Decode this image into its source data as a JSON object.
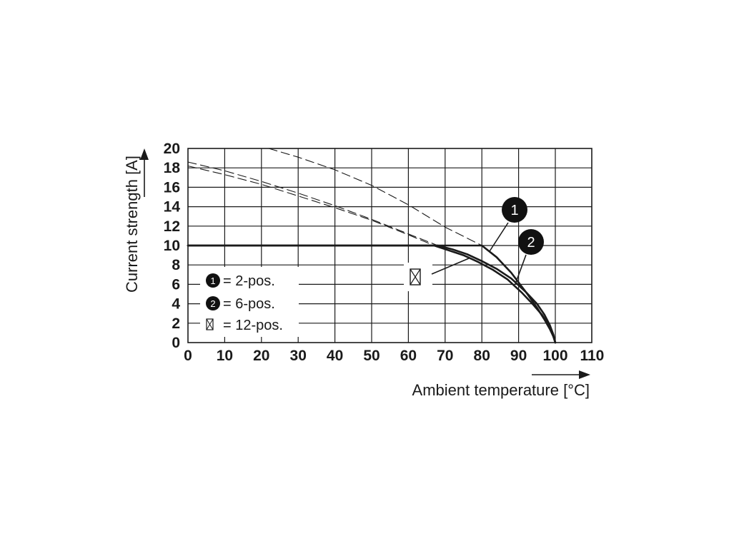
{
  "chart_data": {
    "type": "line",
    "xlabel": "Ambient temperature [°C]",
    "ylabel": "Current strength [A]",
    "xlim": [
      0,
      110
    ],
    "ylim": [
      0,
      20
    ],
    "x_ticks": [
      "0",
      "10",
      "20",
      "30",
      "40",
      "50",
      "60",
      "70",
      "80",
      "90",
      "100",
      "110"
    ],
    "y_ticks": [
      "0",
      "2",
      "4",
      "6",
      "8",
      "10",
      "12",
      "14",
      "16",
      "18",
      "20"
    ],
    "grid": true,
    "legend": {
      "placement": "lower-left",
      "entries": [
        {
          "marker": "1",
          "label": "= 2-pos."
        },
        {
          "marker": "2",
          "label": "= 6-pos."
        },
        {
          "marker": "crossed-box",
          "label": "= 12-pos."
        }
      ]
    },
    "callouts": [
      {
        "label": "1",
        "target_series": "2-pos."
      },
      {
        "label": "2",
        "target_series": "6-pos."
      }
    ],
    "series": [
      {
        "name": "2-pos.",
        "style": "solid",
        "x": [
          0,
          80,
          84,
          88,
          92,
          95,
          97,
          98.5,
          99.5,
          100
        ],
        "y": [
          10,
          10,
          8.8,
          7.2,
          5.2,
          3.6,
          2.4,
          1.4,
          0.6,
          0
        ]
      },
      {
        "name": "2-pos.",
        "style": "dashed",
        "x": [
          22,
          30,
          40,
          50,
          60,
          70,
          80
        ],
        "y": [
          20,
          19.1,
          17.8,
          16.2,
          14.2,
          11.9,
          10
        ]
      },
      {
        "name": "6-pos.",
        "style": "solid",
        "x": [
          0,
          68,
          72,
          76,
          80,
          84,
          88,
          92,
          95,
          97,
          98.5,
          99.5,
          100
        ],
        "y": [
          10,
          10,
          9.6,
          9.1,
          8.4,
          7.6,
          6.6,
          5.2,
          4.0,
          2.9,
          1.8,
          0.8,
          0
        ]
      },
      {
        "name": "6-pos.",
        "style": "dashed",
        "x": [
          0,
          10,
          20,
          30,
          40,
          50,
          60,
          68
        ],
        "y": [
          18.6,
          17.7,
          16.6,
          15.4,
          14.1,
          12.7,
          11.2,
          10
        ]
      },
      {
        "name": "12-pos.",
        "style": "solid",
        "x": [
          0,
          67,
          71,
          75,
          79,
          83,
          87,
          91,
          94,
          96.5,
          98.3,
          99.4,
          100
        ],
        "y": [
          10,
          10,
          9.5,
          9.0,
          8.3,
          7.5,
          6.5,
          5.1,
          3.9,
          2.8,
          1.7,
          0.7,
          0
        ]
      },
      {
        "name": "12-pos.",
        "style": "dashed",
        "x": [
          0,
          10,
          20,
          30,
          40,
          50,
          60,
          67
        ],
        "y": [
          18.2,
          17.3,
          16.3,
          15.1,
          13.9,
          12.6,
          11.1,
          10
        ]
      }
    ]
  }
}
